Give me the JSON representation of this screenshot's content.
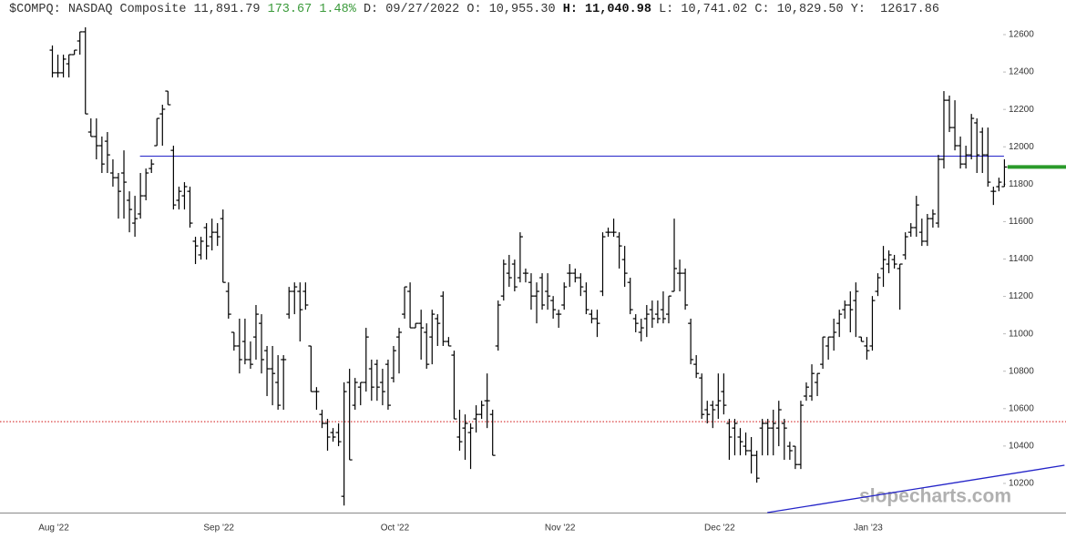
{
  "header": {
    "symbol": "$COMPQ:",
    "name": "NASDAQ Composite",
    "last": "11,891.79",
    "change": "173.67",
    "change_pct": "1.48%",
    "fields": [
      {
        "label": "D:",
        "value": "09/27/2022"
      },
      {
        "label": "O:",
        "value": "10,955.30"
      },
      {
        "label": "H:",
        "value": "11,040.98"
      },
      {
        "label": "L:",
        "value": "10,741.02"
      },
      {
        "label": "C:",
        "value": "10,829.50"
      },
      {
        "label": "Y:",
        "value": "12617.86"
      }
    ]
  },
  "watermark": "slopecharts.com",
  "chart_data": {
    "type": "ohlc",
    "color": "#000000",
    "categories": [
      "Aug '22",
      null,
      null,
      null,
      null,
      null,
      null,
      null,
      null,
      null,
      null,
      null,
      null,
      null,
      null,
      null,
      null,
      null,
      null,
      null,
      null,
      null,
      null,
      null,
      null,
      null,
      null,
      null,
      null,
      null,
      "Sep '22",
      null,
      null,
      null,
      null,
      null,
      null,
      null,
      null,
      null,
      null,
      null,
      null,
      null,
      null,
      null,
      null,
      null,
      null,
      null,
      null,
      null,
      null,
      null,
      null,
      null,
      null,
      null,
      null,
      null,
      null,
      null,
      "Oct '22",
      null,
      null,
      null,
      null,
      null,
      null,
      null,
      null,
      null,
      null,
      null,
      null,
      null,
      null,
      null,
      null,
      null,
      null,
      null,
      null,
      null,
      null,
      null,
      null,
      null,
      null,
      null,
      null,
      null,
      "Nov '22",
      null,
      null,
      null,
      null,
      null,
      null,
      null,
      null,
      null,
      null,
      null,
      null,
      null,
      null,
      null,
      null,
      null,
      null,
      null,
      null,
      null,
      null,
      null,
      null,
      null,
      null,
      null,
      null,
      "Dec '22",
      null,
      null,
      null,
      null,
      null,
      null,
      null,
      null,
      null,
      null,
      null,
      null,
      null,
      null,
      null,
      null,
      null,
      null,
      null,
      null,
      null,
      null,
      null,
      null,
      null,
      null,
      "Jan '23",
      null,
      null,
      null,
      null,
      null,
      null,
      null,
      null,
      null,
      null,
      null,
      null,
      null,
      null,
      null,
      null,
      null,
      null,
      null,
      null,
      null,
      null,
      null,
      null,
      null
    ],
    "open": [
      12517,
      12396,
      12396,
      12444,
      12493,
      12566,
      12615,
      12079,
      12055,
      12006,
      12030,
      11860,
      11835,
      11860,
      11714,
      11592,
      11641,
      11738,
      11884,
      12006,
      12176,
      12298,
      11981,
      11714,
      11738,
      11762,
      11495,
      11422,
      11568,
      11519,
      11543,
      11616,
      11227,
      11008,
      10935,
      10959,
      10862,
      10983,
      11056,
      10910,
      10813,
      10740,
      10862,
      11105,
      11227,
      11227,
      11227,
      10935,
      10691,
      10569,
      10521,
      10472,
      10472,
      10131,
      10740,
      10618,
      10715,
      10740,
      10813,
      10837,
      10740,
      10837,
      10764,
      10983,
      11105,
      11227,
      11032,
      11056,
      11008,
      10983,
      11081,
      11202,
      10959,
      10886,
      10448,
      10496,
      10472,
      10545,
      10569,
      10642,
      10569,
      10935,
      11202,
      11324,
      11373,
      11300,
      11324,
      11275,
      11202,
      11300,
      11227,
      11178,
      11105,
      11154,
      11324,
      11324,
      11300,
      11227,
      11105,
      11081,
      11227,
      11543,
      11543,
      11519,
      11397,
      11275,
      11081,
      11008,
      11081,
      11129,
      11105,
      11129,
      11105,
      11227,
      11324,
      11324,
      11056,
      10837,
      10764,
      10594,
      10618,
      10618,
      10691,
      10521,
      10496,
      10448,
      10399,
      10375,
      10350,
      10496,
      10521,
      10496,
      10496,
      10521,
      10399,
      10399,
      10301,
      10667,
      10667,
      10740,
      10837,
      10935,
      10983,
      11056,
      11129,
      11154,
      11178,
      10983,
      10935,
      10935,
      11227,
      11349,
      11373,
      11397,
      11349,
      11422,
      11543,
      11568,
      11543,
      11495,
      11616,
      11592,
      11933,
      12249,
      12103,
      12006,
      11908,
      11957,
      12128,
      12079,
      11957,
      11762,
      11787,
      11787
    ],
    "high": [
      12542,
      12493,
      12493,
      12493,
      12517,
      12615,
      12639,
      12152,
      12152,
      12055,
      12079,
      11933,
      11860,
      11981,
      11762,
      11738,
      11860,
      11884,
      11933,
      12152,
      12225,
      12298,
      12006,
      11787,
      11811,
      11787,
      11519,
      11519,
      11592,
      11616,
      11592,
      11665,
      11275,
      11008,
      11081,
      11081,
      10959,
      11154,
      11105,
      10935,
      10935,
      10886,
      10886,
      11251,
      11275,
      11275,
      11275,
      10935,
      10715,
      10594,
      10545,
      10496,
      10521,
      10740,
      10813,
      10764,
      10740,
      11032,
      10862,
      10862,
      10813,
      10862,
      10935,
      11032,
      11251,
      11275,
      11056,
      11129,
      11056,
      11129,
      11105,
      11227,
      10983,
      10910,
      10594,
      10569,
      10521,
      10618,
      10642,
      10788,
      10594,
      11178,
      11397,
      11422,
      11397,
      11543,
      11349,
      11324,
      11275,
      11324,
      11324,
      11202,
      11129,
      11275,
      11373,
      11349,
      11324,
      11275,
      11129,
      11129,
      11543,
      11568,
      11616,
      11543,
      11470,
      11300,
      11105,
      11081,
      11154,
      11178,
      11178,
      11227,
      11202,
      11616,
      11397,
      11349,
      11081,
      10886,
      10788,
      10642,
      10642,
      10788,
      10788,
      10545,
      10545,
      10496,
      10472,
      10448,
      10375,
      10545,
      10545,
      10594,
      10642,
      10545,
      10423,
      10399,
      10642,
      10740,
      10837,
      10788,
      10983,
      10983,
      11081,
      11129,
      11178,
      11227,
      11275,
      10983,
      10983,
      11202,
      11324,
      11470,
      11446,
      11422,
      11373,
      11543,
      11592,
      11738,
      11616,
      11641,
      11665,
      11957,
      12298,
      12274,
      12249,
      12055,
      12006,
      12176,
      12152,
      12103,
      12103,
      11787,
      11835,
      11933
    ],
    "low": [
      12371,
      12371,
      12371,
      12371,
      12493,
      12493,
      12176,
      12055,
      11933,
      11860,
      11860,
      11787,
      11616,
      11616,
      11543,
      11519,
      11616,
      11714,
      11860,
      12006,
      12006,
      12225,
      11665,
      11665,
      11665,
      11568,
      11373,
      11397,
      11397,
      11446,
      11470,
      11275,
      11081,
      10910,
      10788,
      10837,
      10813,
      10862,
      10788,
      10667,
      10618,
      10594,
      10594,
      11081,
      11105,
      10959,
      11129,
      10691,
      10594,
      10496,
      10375,
      10423,
      10399,
      10082,
      10326,
      10594,
      10618,
      10691,
      10642,
      10642,
      10618,
      10594,
      10740,
      10788,
      11081,
      11032,
      11032,
      10862,
      10813,
      10837,
      10935,
      10935,
      10935,
      10545,
      10375,
      10326,
      10277,
      10472,
      10545,
      10496,
      10350,
      10910,
      11178,
      11251,
      11227,
      11275,
      11275,
      11129,
      11056,
      11129,
      11129,
      11081,
      11032,
      11129,
      11251,
      11275,
      11202,
      11105,
      11056,
      10983,
      11202,
      11519,
      11519,
      11349,
      11251,
      11105,
      11008,
      10959,
      10983,
      11032,
      11056,
      11056,
      11056,
      11227,
      11227,
      11129,
      10837,
      10764,
      10545,
      10521,
      10496,
      10545,
      10569,
      10326,
      10350,
      10350,
      10350,
      10253,
      10204,
      10350,
      10350,
      10350,
      10399,
      10326,
      10326,
      10277,
      10277,
      10642,
      10642,
      10667,
      10813,
      10862,
      10910,
      10983,
      11081,
      11008,
      10983,
      10959,
      10862,
      10910,
      11202,
      11251,
      11324,
      11349,
      11129,
      11397,
      11519,
      11519,
      11470,
      11470,
      11568,
      11568,
      11884,
      12079,
      11981,
      11884,
      11884,
      11933,
      11860,
      11860,
      11787,
      11689,
      11762,
      11787
    ],
    "close": [
      12396,
      12396,
      12469,
      12493,
      12517,
      12615,
      12176,
      12055,
      12006,
      11908,
      11957,
      11835,
      11762,
      11811,
      11665,
      11616,
      11738,
      11860,
      11908,
      12152,
      12201,
      12225,
      11689,
      11762,
      11787,
      11592,
      11470,
      11495,
      11470,
      11543,
      11519,
      11275,
      11105,
      10935,
      10862,
      10862,
      10837,
      11105,
      10862,
      10813,
      10788,
      10618,
      10862,
      11227,
      11251,
      11129,
      11154,
      10691,
      10691,
      10521,
      10448,
      10448,
      10423,
      10691,
      10326,
      10740,
      10740,
      10983,
      10715,
      10715,
      10691,
      10618,
      10910,
      11008,
      11251,
      11032,
      11056,
      11032,
      10837,
      11105,
      11056,
      10959,
      10935,
      10545,
      10423,
      10521,
      10496,
      10569,
      10618,
      10642,
      10350,
      11154,
      11373,
      11300,
      11251,
      11519,
      11324,
      11202,
      11227,
      11154,
      11202,
      11129,
      11105,
      11251,
      11324,
      11300,
      11251,
      11129,
      11081,
      11056,
      11519,
      11543,
      11543,
      11470,
      11324,
      11129,
      11056,
      11032,
      11105,
      11081,
      11081,
      11081,
      11202,
      11349,
      11324,
      11154,
      10862,
      10788,
      10569,
      10569,
      10594,
      10642,
      10618,
      10448,
      10521,
      10423,
      10375,
      10350,
      10228,
      10521,
      10496,
      10521,
      10594,
      10496,
      10375,
      10301,
      10618,
      10715,
      10788,
      10788,
      10983,
      10983,
      11008,
      11105,
      11154,
      11129,
      11227,
      10959,
      10910,
      11178,
      11300,
      11397,
      11422,
      11373,
      11373,
      11519,
      11568,
      11689,
      11495,
      11616,
      11641,
      11933,
      12249,
      12103,
      12006,
      11908,
      11957,
      12152,
      11957,
      11957,
      11811,
      11762,
      11811,
      11892
    ],
    "ylim": [
      10044,
      12678
    ],
    "yticks": [
      10200,
      10400,
      10600,
      10800,
      11000,
      11200,
      11400,
      11600,
      11800,
      12000,
      12200,
      12400,
      12600
    ],
    "levels": [
      {
        "value": 11950,
        "color": "#2424c8",
        "style": "solid",
        "start": 16,
        "end": 173
      },
      {
        "value": 10530,
        "color": "#d01010",
        "style": "dotted"
      }
    ],
    "last_color": "#2a9a2a",
    "trendline": {
      "points": [
        [
          130,
          10044
        ],
        [
          184,
          10297
        ]
      ],
      "color": "#2424c8"
    }
  }
}
